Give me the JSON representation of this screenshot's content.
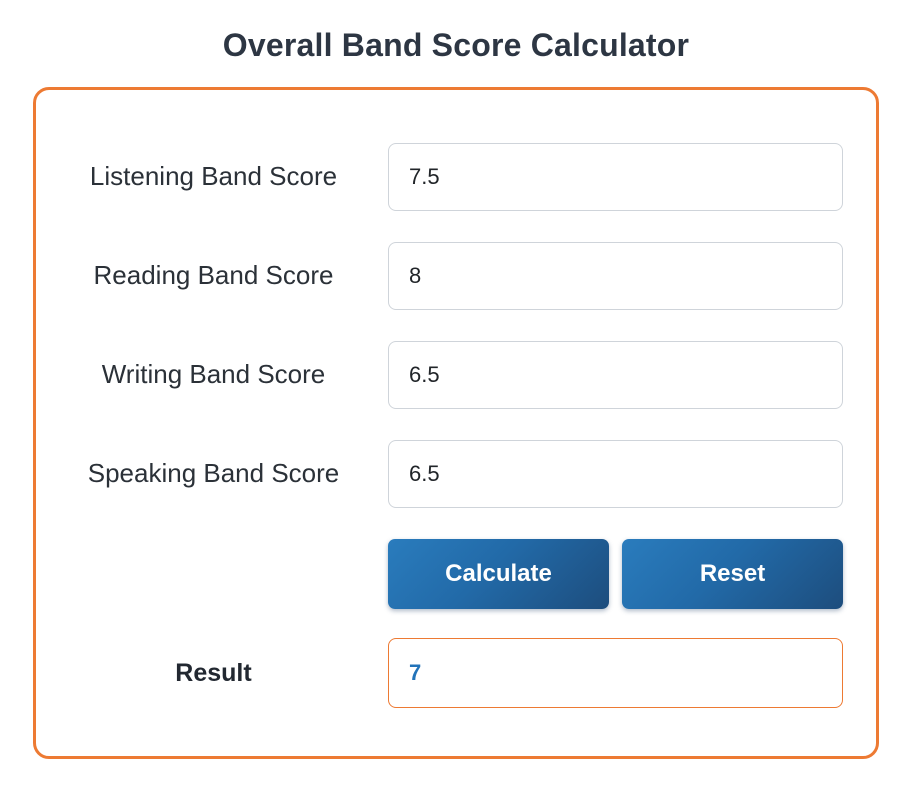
{
  "page": {
    "title": "Overall Band Score Calculator"
  },
  "form": {
    "fields": [
      {
        "label": "Listening Band Score",
        "value": "7.5"
      },
      {
        "label": "Reading Band Score",
        "value": "8"
      },
      {
        "label": "Writing Band Score",
        "value": "6.5"
      },
      {
        "label": "Speaking Band Score",
        "value": "6.5"
      }
    ],
    "buttons": {
      "calculate": "Calculate",
      "reset": "Reset"
    },
    "result": {
      "label": "Result",
      "value": "7"
    }
  },
  "colors": {
    "accent_orange": "#ed7a33",
    "title_text": "#2d3643",
    "label_text": "#2b3138",
    "input_border": "#cfd4da",
    "input_text": "#212529",
    "button_gradient_start": "#2a7cbd",
    "button_gradient_end": "#1d4d7d",
    "button_text": "#ffffff",
    "result_value_text": "#2273b9"
  }
}
